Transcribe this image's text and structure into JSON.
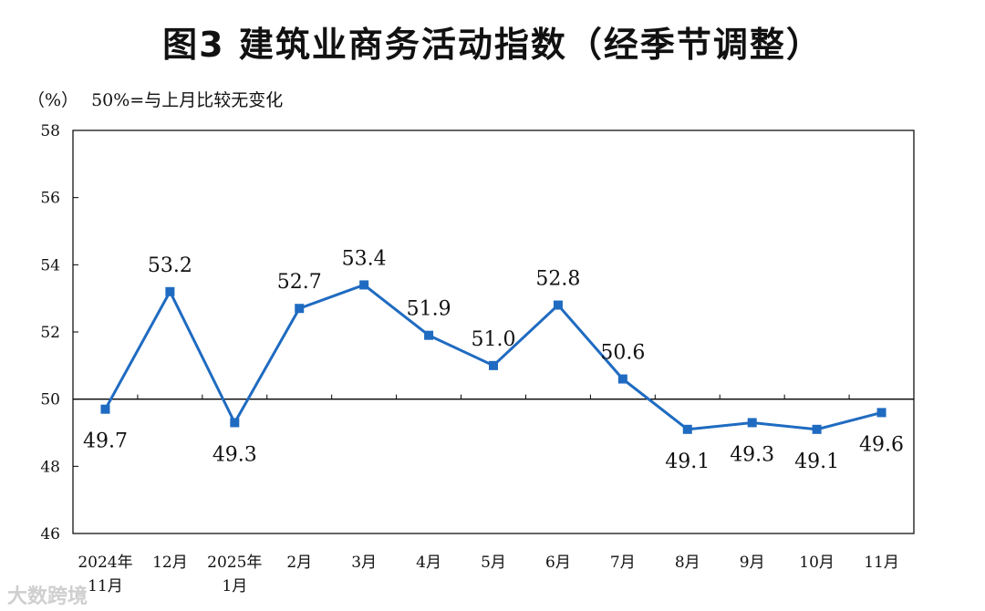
{
  "title": "图3  建筑业商务活动指数（经季节调整）",
  "unit_label": "（%）",
  "note": "50%=与上月比较无变化",
  "watermark": "大数跨境",
  "colors": {
    "series": "#1f6bc1",
    "axis": "#000000",
    "reference_line": "#000000"
  },
  "chart_data": {
    "type": "line",
    "title": "图3  建筑业商务活动指数（经季节调整）",
    "ylabel": "（%）",
    "xlabel": "",
    "categories": [
      [
        "2024年",
        "11月"
      ],
      [
        "12月"
      ],
      [
        "2025年",
        "1月"
      ],
      [
        "2月"
      ],
      [
        "3月"
      ],
      [
        "4月"
      ],
      [
        "5月"
      ],
      [
        "6月"
      ],
      [
        "7月"
      ],
      [
        "8月"
      ],
      [
        "9月"
      ],
      [
        "10月"
      ],
      [
        "11月"
      ]
    ],
    "series": [
      {
        "values": [
          49.7,
          53.2,
          49.3,
          52.7,
          53.4,
          51.9,
          51.0,
          52.8,
          50.6,
          49.1,
          49.3,
          49.1,
          49.6
        ]
      }
    ],
    "data_labels": [
      "49.7",
      "53.2",
      "49.3",
      "52.7",
      "53.4",
      "51.9",
      "51.0",
      "52.8",
      "50.6",
      "49.1",
      "49.3",
      "49.1",
      "49.6"
    ],
    "ylim": [
      46,
      58
    ],
    "yticks": [
      46,
      48,
      50,
      52,
      54,
      56,
      58
    ],
    "reference_line": 50,
    "marker": "square",
    "grid": false,
    "legend": "none"
  }
}
